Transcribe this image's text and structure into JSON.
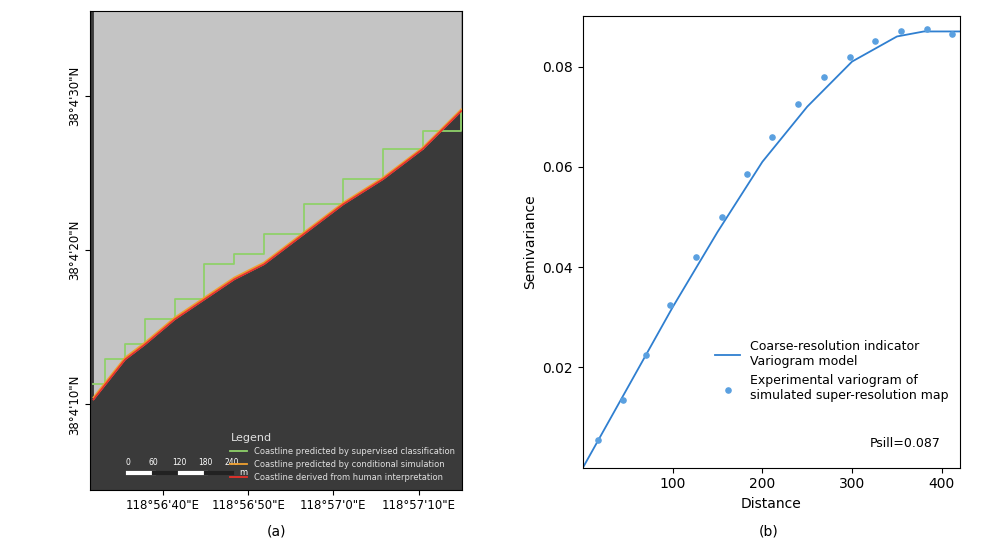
{
  "chart_data": [
    {
      "type": "map",
      "panel": "(a)",
      "xlim": [
        118.942086,
        118.954199
      ],
      "ylim": [
        38.067911,
        38.076533
      ],
      "xticks": [
        {
          "value": 118.944444,
          "label": "118°56'40\"E"
        },
        {
          "value": 118.947222,
          "label": "118°56'50\"E"
        },
        {
          "value": 118.95,
          "label": "118°57'0\"E"
        },
        {
          "value": 118.952778,
          "label": "118°57'10\"E"
        }
      ],
      "yticks": [
        {
          "value": 38.069444,
          "label": "38°4'10\"N"
        },
        {
          "value": 38.072222,
          "label": "38°4'20\"N"
        },
        {
          "value": 38.075,
          "label": "38°4'30\"N"
        }
      ],
      "legend": "lower right",
      "legend_title": "Legend",
      "scale_bar": {
        "ticks": [
          0,
          60,
          120,
          180,
          240
        ],
        "unit": "m"
      },
      "series": [
        {
          "name": "Coastline predicted by supervised classification",
          "color": "#8fd16a",
          "line_style": "steps",
          "x": [
            118.942183,
            118.942571,
            118.943217,
            118.943863,
            118.944832,
            118.945801,
            118.94677,
            118.947739,
            118.949031,
            118.950323,
            118.951615,
            118.952907,
            118.954163
          ],
          "y": [
            38.069804,
            38.070255,
            38.070526,
            38.070977,
            38.071337,
            38.071969,
            38.072149,
            38.07251,
            38.073051,
            38.073502,
            38.074043,
            38.074368,
            38.074729
          ]
        },
        {
          "name": "Coastline predicted by conditional simulation",
          "color": "#f0a030",
          "line_style": "solid",
          "x": [
            118.942183,
            118.942571,
            118.943217,
            118.943863,
            118.944832,
            118.945801,
            118.94677,
            118.947739,
            118.949031,
            118.950323,
            118.951615,
            118.952907,
            118.954163
          ],
          "y": [
            38.06957,
            38.06984,
            38.07029,
            38.07056,
            38.07101,
            38.07137,
            38.07173,
            38.072,
            38.07254,
            38.07308,
            38.07353,
            38.07407,
            38.07476
          ]
        },
        {
          "name": "Coastline derived from human interpretation",
          "color": "#e8312a",
          "line_style": "solid",
          "x": [
            118.942183,
            118.942571,
            118.943217,
            118.943863,
            118.944832,
            118.945801,
            118.94677,
            118.947739,
            118.949031,
            118.950323,
            118.951615,
            118.952907,
            118.954163
          ],
          "y": [
            38.069533,
            38.069804,
            38.070255,
            38.070526,
            38.070977,
            38.071337,
            38.071698,
            38.071969,
            38.07251,
            38.073051,
            38.073502,
            38.074043,
            38.074729
          ]
        }
      ]
    },
    {
      "type": "line",
      "panel": "(b)",
      "x_label": "Distance",
      "y_label": "Semivariance",
      "xlim": [
        0,
        420
      ],
      "ylim": [
        0,
        0.09
      ],
      "xticks": [
        100,
        200,
        300,
        400
      ],
      "yticks": [
        0.02,
        0.04,
        0.06,
        0.08
      ],
      "legend": "lower right",
      "annotations": [
        "Psill=0.087"
      ],
      "series": [
        {
          "name": "Coarse-resolution indicator\nVariogram model",
          "type": "line",
          "color": "#2f7fd0",
          "line_style": "solid",
          "x": [
            0,
            50,
            100,
            150,
            200,
            250,
            300,
            350,
            380,
            420
          ],
          "values": [
            0,
            0.016,
            0.032,
            0.047,
            0.061,
            0.072,
            0.081,
            0.086,
            0.087,
            0.087
          ]
        },
        {
          "name": "Experimental variogram of\nsimulated super-resolution map",
          "type": "scatter",
          "color": "#5aa0e0",
          "marker": "circle",
          "x": [
            17,
            45,
            70,
            97,
            126,
            155,
            183,
            211,
            240,
            269,
            298,
            326,
            355,
            383,
            411
          ],
          "values": [
            0.0055,
            0.0135,
            0.0225,
            0.0325,
            0.042,
            0.05,
            0.0585,
            0.066,
            0.0725,
            0.078,
            0.082,
            0.085,
            0.087,
            0.0875,
            0.0865
          ]
        }
      ]
    }
  ]
}
